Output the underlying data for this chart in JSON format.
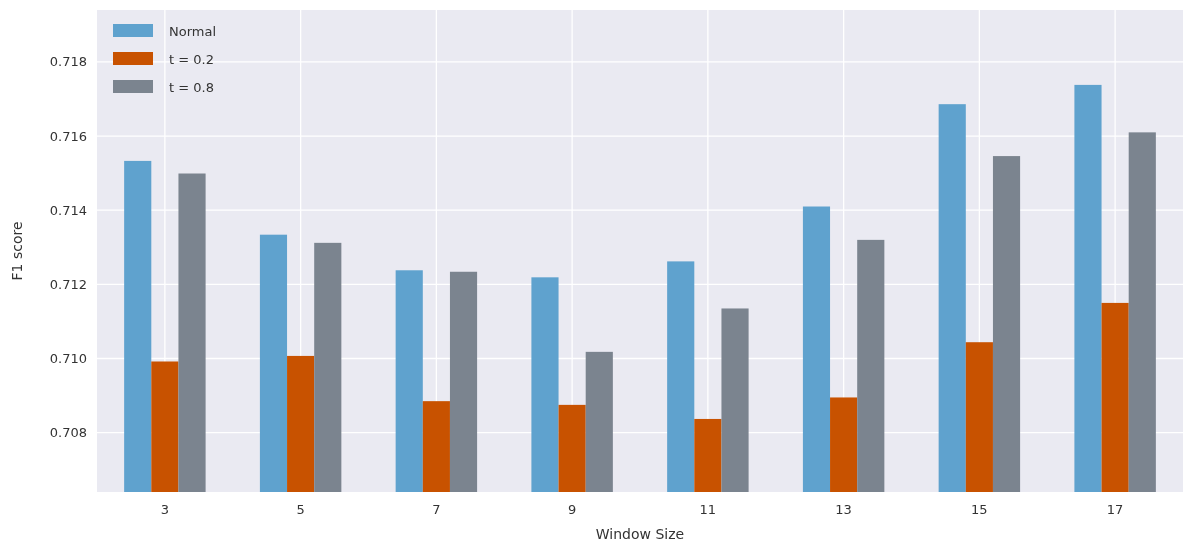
{
  "chart_data": {
    "type": "bar",
    "xlabel": "Window Size",
    "ylabel": "F1 score",
    "categories": [
      "3",
      "5",
      "7",
      "9",
      "11",
      "13",
      "15",
      "17"
    ],
    "series": [
      {
        "name": "Normal",
        "color": "#5fa2ce",
        "values": [
          0.71533,
          0.71334,
          0.71238,
          0.71219,
          0.71262,
          0.7141,
          0.71686,
          0.71738
        ]
      },
      {
        "name": "t = 0.2",
        "color": "#c85200",
        "values": [
          0.70992,
          0.71007,
          0.70885,
          0.70875,
          0.70837,
          0.70895,
          0.71044,
          0.7115
        ]
      },
      {
        "name": "t = 0.8",
        "color": "#7b848f",
        "values": [
          0.71499,
          0.71312,
          0.71234,
          0.71018,
          0.71135,
          0.7132,
          0.71546,
          0.7161
        ]
      }
    ],
    "ylim": [
      0.7064,
      0.7194
    ],
    "yticks": [
      0.708,
      {
        "value": 0.71,
        "label": "0.710"
      },
      0.712,
      0.714,
      0.716,
      0.718
    ],
    "grid": true,
    "legend": "top left"
  }
}
